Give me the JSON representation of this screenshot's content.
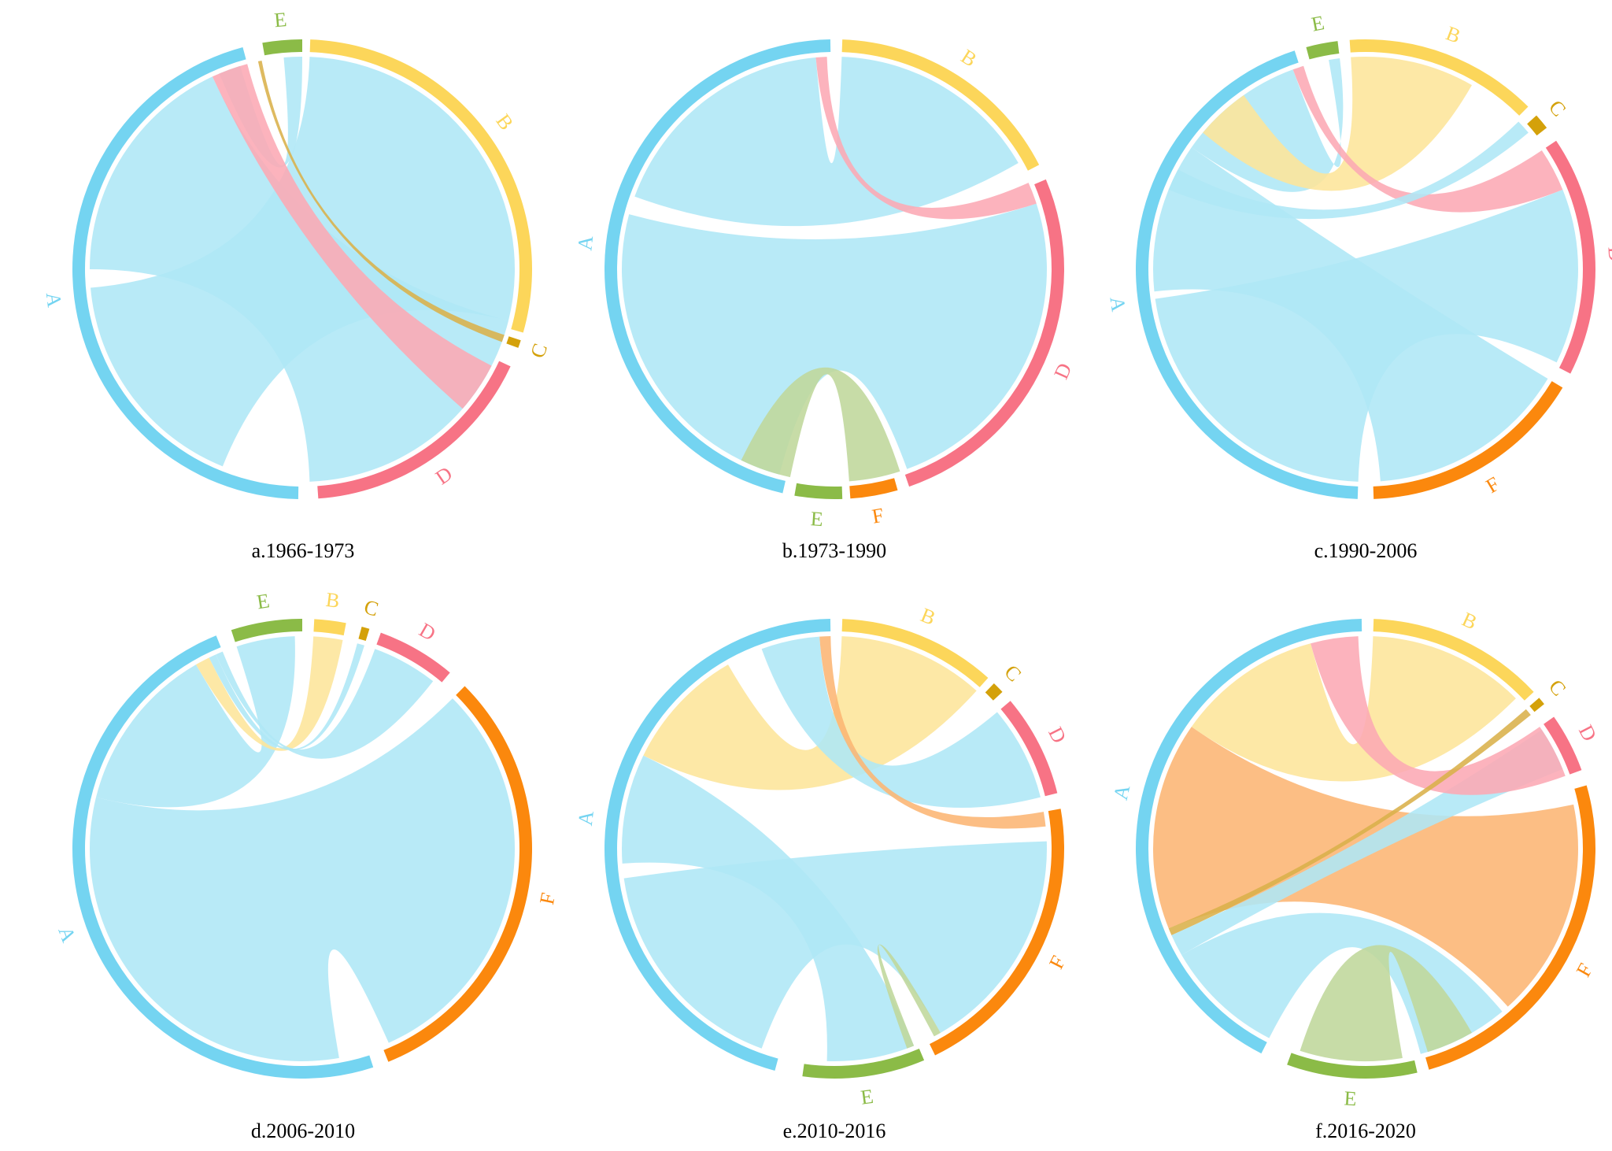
{
  "colors": {
    "A": "#74d4f1",
    "B": "#fcd65a",
    "C": "#d4a10a",
    "D": "#f77385",
    "E": "#8bbb47",
    "F": "#fb880d",
    "ribbon_A": "#aee7f6",
    "ribbon_B": "#fde59a",
    "ribbon_D": "#fca8b4",
    "ribbon_E": "#bfd79b",
    "ribbon_F": "#fcb573",
    "ribbon_C": "#d9b04a",
    "caption": "#000000"
  },
  "diagrams": [
    {
      "caption": "a.1966-1973",
      "segments": [
        {
          "key": "A",
          "label": "A",
          "start": 181,
          "end": 345
        },
        {
          "key": "E",
          "label": "E",
          "start": 350,
          "end": 360
        },
        {
          "key": "B",
          "label": "B",
          "start": 2,
          "end": 106
        },
        {
          "key": "C",
          "label": "C",
          "start": 108,
          "end": 110
        },
        {
          "key": "D",
          "label": "D",
          "start": 115,
          "end": 176
        }
      ],
      "ribbons": [
        {
          "src": [
            202,
            265
          ],
          "dst": [
            2,
            104
          ],
          "color": "ribbon_A"
        },
        {
          "src": [
            270,
            335
          ],
          "dst": [
            104,
            178
          ],
          "color": "ribbon_A"
        },
        {
          "src": [
            337,
            343
          ],
          "dst": [
            355,
            360
          ],
          "color": "ribbon_A"
        },
        {
          "src": [
            335,
            345
          ],
          "dst": [
            117,
            131
          ],
          "color": "ribbon_D"
        },
        {
          "src": [
            348,
            349
          ],
          "dst": [
            108,
            110
          ],
          "color": "ribbon_C"
        }
      ]
    },
    {
      "caption": "b.1973-1990",
      "segments": [
        {
          "key": "A",
          "label": "A",
          "start": 193,
          "end": 359
        },
        {
          "key": "B",
          "label": "B",
          "start": 2,
          "end": 63
        },
        {
          "key": "D",
          "label": "D",
          "start": 67,
          "end": 161
        },
        {
          "key": "F",
          "label": "F",
          "start": 164,
          "end": 176
        },
        {
          "key": "E",
          "label": "E",
          "start": 178,
          "end": 190
        }
      ],
      "ribbons": [
        {
          "src": [
            195,
            285
          ],
          "dst": [
            72,
            160
          ],
          "color": "ribbon_A"
        },
        {
          "src": [
            290,
            355
          ],
          "dst": [
            2,
            60
          ],
          "color": "ribbon_A"
        },
        {
          "src": [
            355,
            358
          ],
          "dst": [
            66,
            72
          ],
          "color": "ribbon_D"
        },
        {
          "src": [
            192,
            206
          ],
          "dst": [
            162,
            176
          ],
          "color": "ribbon_E"
        }
      ]
    },
    {
      "caption": "c.1990-2006",
      "segments": [
        {
          "key": "A",
          "label": "A",
          "start": 182,
          "end": 342
        },
        {
          "key": "E",
          "label": "E",
          "start": 345,
          "end": 353
        },
        {
          "key": "B",
          "label": "B",
          "start": 356,
          "end": 45
        },
        {
          "key": "C",
          "label": "C",
          "start": 48,
          "end": 52
        },
        {
          "key": "D",
          "label": "D",
          "start": 56,
          "end": 117
        },
        {
          "key": "F",
          "label": "F",
          "start": 121,
          "end": 178
        }
      ],
      "ribbons": [
        {
          "src": [
            182,
            262
          ],
          "dst": [
            68,
            116
          ],
          "color": "ribbon_A"
        },
        {
          "src": [
            264,
            305
          ],
          "dst": [
            121,
            176
          ],
          "color": "ribbon_A"
        },
        {
          "src": [
            305,
            340
          ],
          "dst": [
            350,
            353
          ],
          "color": "ribbon_A"
        },
        {
          "src": [
            310,
            325
          ],
          "dst": [
            356,
            30
          ],
          "color": "ribbon_B"
        },
        {
          "src": [
            340,
            343
          ],
          "dst": [
            56,
            68
          ],
          "color": "ribbon_D"
        },
        {
          "src": [
            292,
            298
          ],
          "dst": [
            46,
            50
          ],
          "color": "ribbon_A"
        }
      ]
    },
    {
      "caption": "d.2006-2010",
      "segments": [
        {
          "key": "A",
          "label": "A",
          "start": 162,
          "end": 338
        },
        {
          "key": "E",
          "label": "E",
          "start": 342,
          "end": 360
        },
        {
          "key": "B",
          "label": "B",
          "start": 3,
          "end": 11
        },
        {
          "key": "C",
          "label": "C",
          "start": 15,
          "end": 17
        },
        {
          "key": "D",
          "label": "D",
          "start": 20,
          "end": 40
        },
        {
          "key": "F",
          "label": "F",
          "start": 45,
          "end": 158
        }
      ],
      "ribbons": [
        {
          "src": [
            170,
            284
          ],
          "dst": [
            45,
            156
          ],
          "color": "ribbon_A"
        },
        {
          "src": [
            284,
            330
          ],
          "dst": [
            342,
            358
          ],
          "color": "ribbon_A"
        },
        {
          "src": [
            330,
            334
          ],
          "dst": [
            3,
            11
          ],
          "color": "ribbon_B"
        },
        {
          "src": [
            334,
            336
          ],
          "dst": [
            15,
            17
          ],
          "color": "ribbon_A"
        },
        {
          "src": [
            336,
            338
          ],
          "dst": [
            20,
            38
          ],
          "color": "ribbon_A"
        }
      ]
    },
    {
      "caption": "e.2010-2016",
      "segments": [
        {
          "key": "A",
          "label": "A",
          "start": 195,
          "end": 359
        },
        {
          "key": "B",
          "label": "B",
          "start": 2,
          "end": 42
        },
        {
          "key": "C",
          "label": "C",
          "start": 44,
          "end": 47
        },
        {
          "key": "D",
          "label": "D",
          "start": 50,
          "end": 76
        },
        {
          "key": "F",
          "label": "F",
          "start": 80,
          "end": 154
        },
        {
          "key": "E",
          "label": "E",
          "start": 157,
          "end": 188
        }
      ],
      "ribbons": [
        {
          "src": [
            200,
            262
          ],
          "dst": [
            88,
            150
          ],
          "color": "ribbon_A"
        },
        {
          "src": [
            266,
            296
          ],
          "dst": [
            158,
            182
          ],
          "color": "ribbon_A"
        },
        {
          "src": [
            296,
            330
          ],
          "dst": [
            2,
            42
          ],
          "color": "ribbon_B"
        },
        {
          "src": [
            340,
            356
          ],
          "dst": [
            50,
            76
          ],
          "color": "ribbon_A"
        },
        {
          "src": [
            356,
            359
          ],
          "dst": [
            80,
            84
          ],
          "color": "ribbon_F"
        },
        {
          "src": [
            150,
            152
          ],
          "dst": [
            158,
            160
          ],
          "color": "ribbon_E"
        }
      ]
    },
    {
      "caption": "f.2016-2020",
      "segments": [
        {
          "key": "A",
          "label": "A",
          "start": 207,
          "end": 359
        },
        {
          "key": "B",
          "label": "B",
          "start": 2,
          "end": 47
        },
        {
          "key": "C",
          "label": "C",
          "start": 49,
          "end": 51
        },
        {
          "key": "D",
          "label": "D",
          "start": 55,
          "end": 70
        },
        {
          "key": "F",
          "label": "F",
          "start": 74,
          "end": 164
        },
        {
          "key": "E",
          "label": "E",
          "start": 167,
          "end": 200
        }
      ],
      "ribbons": [
        {
          "src": [
            248,
            305
          ],
          "dst": [
            78,
            138
          ],
          "color": "ribbon_F"
        },
        {
          "src": [
            207,
            240
          ],
          "dst": [
            140,
            165
          ],
          "color": "ribbon_A"
        },
        {
          "src": [
            240,
            246
          ],
          "dst": [
            56,
            68
          ],
          "color": "ribbon_A"
        },
        {
          "src": [
            305,
            345
          ],
          "dst": [
            2,
            45
          ],
          "color": "ribbon_B"
        },
        {
          "src": [
            345,
            358
          ],
          "dst": [
            55,
            70
          ],
          "color": "ribbon_D"
        },
        {
          "src": [
            170,
            198
          ],
          "dst": [
            150,
            163
          ],
          "color": "ribbon_E"
        },
        {
          "src": [
            246,
            248
          ],
          "dst": [
            49,
            51
          ],
          "color": "ribbon_C"
        }
      ]
    }
  ]
}
